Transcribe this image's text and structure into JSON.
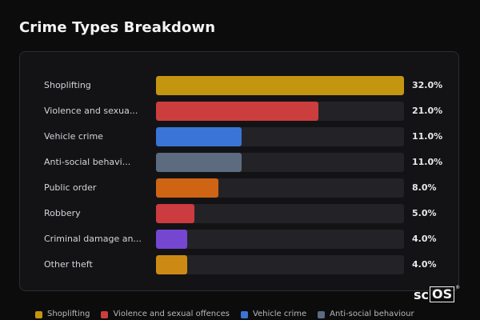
{
  "chart_data": {
    "type": "bar",
    "orientation": "horizontal",
    "title": "Crime Types Breakdown",
    "xlim": [
      0,
      32
    ],
    "value_suffix": "%",
    "categories": [
      "Shoplifting",
      "Violence and sexua...",
      "Vehicle crime",
      "Anti-social behavi...",
      "Public order",
      "Robbery",
      "Criminal damage an...",
      "Other theft"
    ],
    "values": [
      32.0,
      21.0,
      11.0,
      11.0,
      8.0,
      5.0,
      4.0,
      4.0
    ],
    "value_labels": [
      "32.0%",
      "21.0%",
      "11.0%",
      "11.0%",
      "8.0%",
      "5.0%",
      "4.0%",
      "4.0%"
    ],
    "colors": [
      "#c4950f",
      "#cc3d3d",
      "#3a74d6",
      "#5c6b80",
      "#cf6414",
      "#cc3b40",
      "#7547d0",
      "#cc8a14"
    ],
    "legend": {
      "position": "bottom",
      "entries": [
        {
          "label": "Shoplifting",
          "color": "#c4950f"
        },
        {
          "label": "Violence and sexual offences",
          "color": "#cc3d3d"
        },
        {
          "label": "Vehicle crime",
          "color": "#3a74d6"
        },
        {
          "label": "Anti-social behaviour",
          "color": "#5c6b80"
        }
      ]
    },
    "grid": false
  },
  "brand": {
    "logo_text": "scOS",
    "registered_mark": "®"
  }
}
